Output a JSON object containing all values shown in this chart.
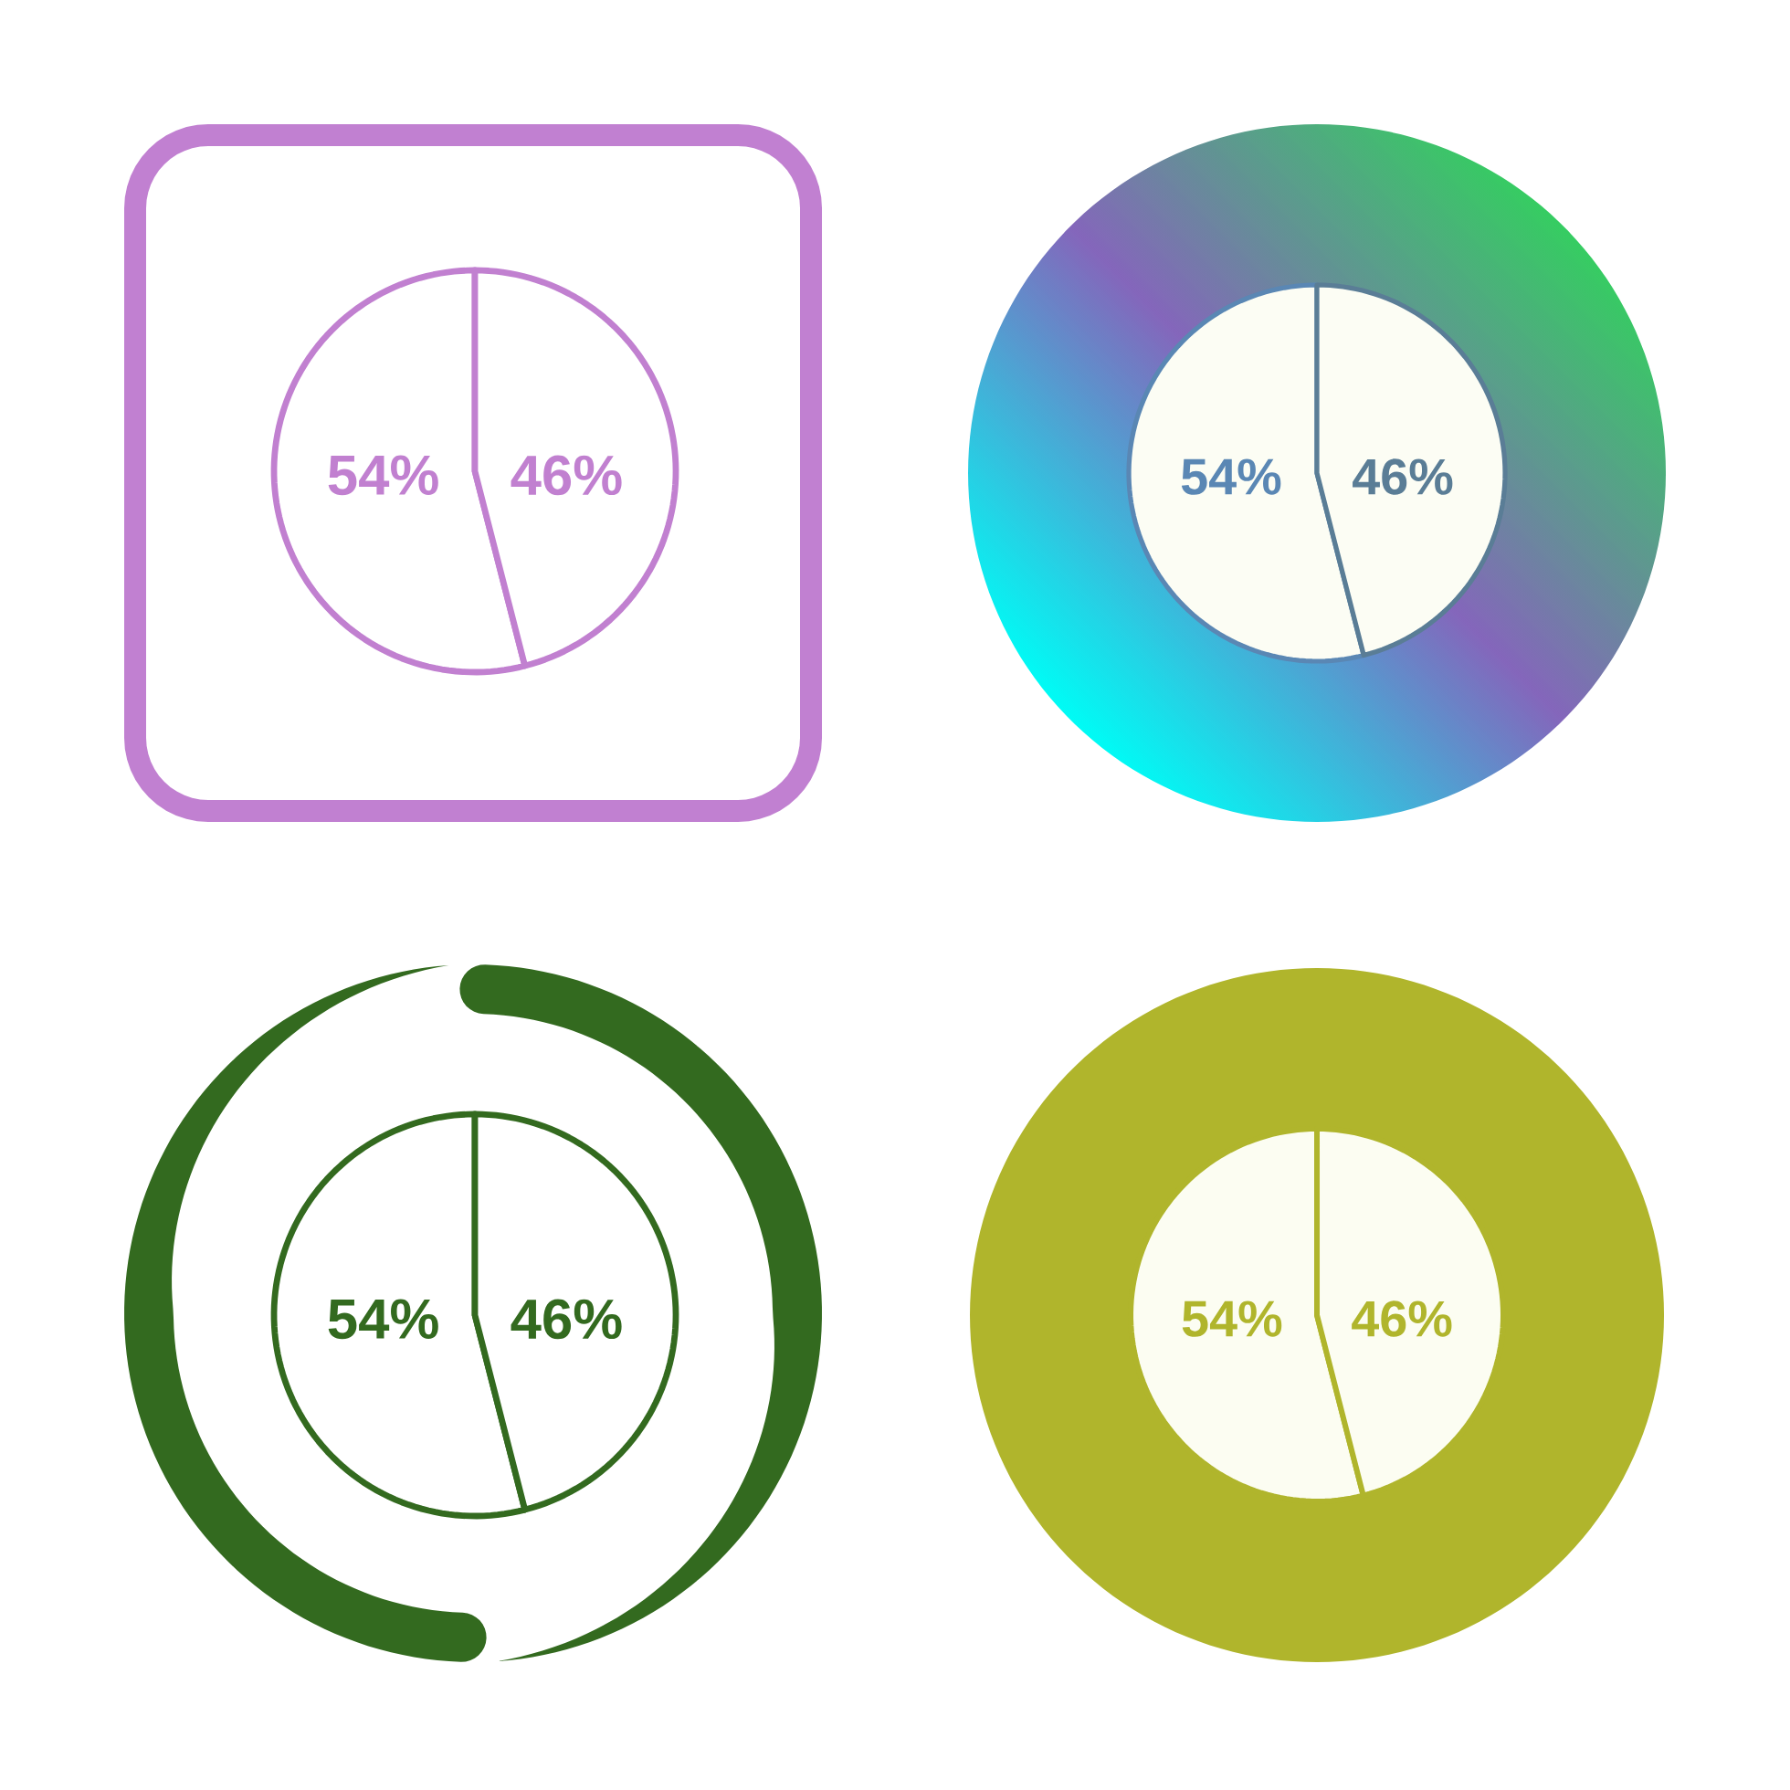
{
  "chart_data": [
    {
      "type": "pie",
      "categories": [
        null,
        null
      ],
      "values": [
        54,
        46
      ],
      "value_labels": [
        "54%",
        "46%"
      ],
      "colors": [
        "#c180d0",
        "#c180d0"
      ]
    },
    {
      "type": "pie",
      "categories": [
        null,
        null
      ],
      "values": [
        54,
        46
      ],
      "value_labels": [
        "54%",
        "46%"
      ],
      "colors": [
        "#5a87b4",
        "#5a7d96"
      ]
    },
    {
      "type": "pie",
      "categories": [
        null,
        null
      ],
      "values": [
        54,
        46
      ],
      "value_labels": [
        "54%",
        "46%"
      ],
      "colors": [
        "#336a1f",
        "#336a1f"
      ]
    },
    {
      "type": "pie",
      "categories": [
        null,
        null
      ],
      "values": [
        54,
        46
      ],
      "value_labels": [
        "54%",
        "46%"
      ],
      "colors": [
        "#b0b52c",
        "#b0b52c"
      ]
    }
  ]
}
